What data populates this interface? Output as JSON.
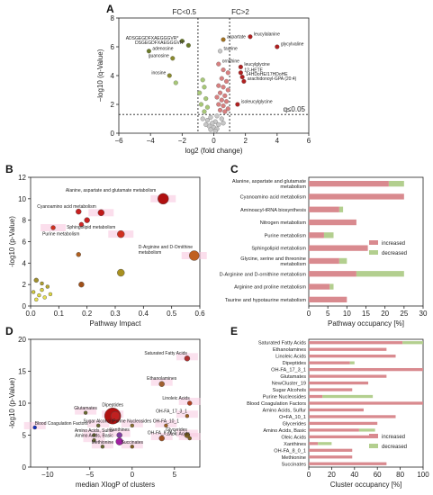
{
  "chart_data": [
    {
      "panel": "A",
      "type": "scatter",
      "xlabel": "log2 (fold change)",
      "ylabel": "−log10 (q-Value)",
      "xlim": [
        -6,
        6
      ],
      "ylim": [
        0,
        8
      ],
      "xticks": [
        "−6",
        "−4",
        "−2",
        "0",
        "2",
        "4",
        "6"
      ],
      "yticks": [
        "0",
        "2",
        "4",
        "6",
        "8"
      ],
      "thresholds": {
        "fc_low": -1,
        "fc_high": 1,
        "q": 1.3
      },
      "threshold_labels": [
        "FC<0.5",
        "FC>2",
        "q≤0.05"
      ],
      "points": [
        {
          "x": 4.0,
          "y": 6.0,
          "label": "glycylvaline",
          "color": "#b02020"
        },
        {
          "x": 2.3,
          "y": 6.7,
          "label": "leucylalanine",
          "color": "#b02020"
        },
        {
          "x": 0.6,
          "y": 6.5,
          "label": "aspartate",
          "color": "#a07020"
        },
        {
          "x": -2.0,
          "y": 6.4,
          "label": "ADSGEGDFXAEGGGVR*",
          "color": "#6a7a2a"
        },
        {
          "x": -1.6,
          "y": 6.1,
          "label": "DSGEGDFXAEGGGVR*",
          "color": "#6a7a2a"
        },
        {
          "x": -4.1,
          "y": 5.7,
          "label": "adenosine",
          "color": "#6a7a2a"
        },
        {
          "x": -2.6,
          "y": 5.2,
          "label": "guanosine",
          "color": "#8a8a30"
        },
        {
          "x": 0.4,
          "y": 5.7,
          "label": "taurine",
          "color": "#c8c8c8"
        },
        {
          "x": 0.3,
          "y": 4.8,
          "label": "ornithine",
          "color": "#d88080"
        },
        {
          "x": 1.7,
          "y": 4.6,
          "label": "leucylglycine",
          "color": "#b02020"
        },
        {
          "x": 1.7,
          "y": 4.2,
          "label": "12-HETE",
          "color": "#b02020"
        },
        {
          "x": 1.8,
          "y": 3.9,
          "label": "14HDoHE/17HDoHE",
          "color": "#b02020"
        },
        {
          "x": 1.9,
          "y": 3.6,
          "label": "arachidonoyl-GPA (20:4)",
          "color": "#b02020"
        },
        {
          "x": -2.8,
          "y": 4.0,
          "label": "inosine",
          "color": "#8a8a30"
        },
        {
          "x": 1.5,
          "y": 2.0,
          "label": "isoleucylglycine",
          "color": "#b02020"
        },
        {
          "x": 0.6,
          "y": 4.4,
          "label": "",
          "color": "#d88080"
        },
        {
          "x": 0.9,
          "y": 4.2,
          "label": "",
          "color": "#d88080"
        },
        {
          "x": 0.5,
          "y": 3.8,
          "label": "",
          "color": "#d88080"
        },
        {
          "x": 0.8,
          "y": 3.6,
          "label": "",
          "color": "#d88080"
        },
        {
          "x": 0.3,
          "y": 3.3,
          "label": "",
          "color": "#d88080"
        },
        {
          "x": 0.6,
          "y": 3.2,
          "label": "",
          "color": "#d88080"
        },
        {
          "x": 0.9,
          "y": 3.0,
          "label": "",
          "color": "#d88080"
        },
        {
          "x": 0.4,
          "y": 2.8,
          "label": "",
          "color": "#d88080"
        },
        {
          "x": 0.7,
          "y": 2.6,
          "label": "",
          "color": "#d88080"
        },
        {
          "x": 0.2,
          "y": 2.5,
          "label": "",
          "color": "#d88080"
        },
        {
          "x": 0.5,
          "y": 2.3,
          "label": "",
          "color": "#d88080"
        },
        {
          "x": 0.8,
          "y": 2.2,
          "label": "",
          "color": "#d88080"
        },
        {
          "x": 0.3,
          "y": 2.0,
          "label": "",
          "color": "#d88080"
        },
        {
          "x": 0.6,
          "y": 1.9,
          "label": "",
          "color": "#d88080"
        },
        {
          "x": 0.9,
          "y": 1.7,
          "label": "",
          "color": "#d88080"
        },
        {
          "x": 0.4,
          "y": 1.6,
          "label": "",
          "color": "#d88080"
        },
        {
          "x": 0.7,
          "y": 1.5,
          "label": "",
          "color": "#d88080"
        },
        {
          "x": -0.7,
          "y": 3.7,
          "label": "",
          "color": "#a8c878"
        },
        {
          "x": -0.6,
          "y": 3.2,
          "label": "",
          "color": "#a8c878"
        },
        {
          "x": -0.9,
          "y": 2.8,
          "label": "",
          "color": "#a8c878"
        },
        {
          "x": -0.5,
          "y": 2.4,
          "label": "",
          "color": "#a8c878"
        },
        {
          "x": -0.8,
          "y": 2.0,
          "label": "",
          "color": "#a8c878"
        },
        {
          "x": -0.4,
          "y": 1.8,
          "label": "",
          "color": "#a8c878"
        },
        {
          "x": -0.6,
          "y": 1.5,
          "label": "",
          "color": "#a8c878"
        },
        {
          "x": -2.4,
          "y": 3.5,
          "label": "",
          "color": "#a8c878"
        },
        {
          "x": 0.2,
          "y": 1.2,
          "label": "",
          "color": "#c8c8c8"
        },
        {
          "x": -0.2,
          "y": 1.1,
          "label": "",
          "color": "#c8c8c8"
        },
        {
          "x": 0.5,
          "y": 1.0,
          "label": "",
          "color": "#c8c8c8"
        },
        {
          "x": -0.4,
          "y": 0.9,
          "label": "",
          "color": "#c8c8c8"
        },
        {
          "x": 0.1,
          "y": 0.8,
          "label": "",
          "color": "#c8c8c8"
        },
        {
          "x": -0.1,
          "y": 0.7,
          "label": "",
          "color": "#c8c8c8"
        },
        {
          "x": 0.3,
          "y": 0.6,
          "label": "",
          "color": "#c8c8c8"
        },
        {
          "x": -0.3,
          "y": 0.5,
          "label": "",
          "color": "#c8c8c8"
        },
        {
          "x": 0.0,
          "y": 0.4,
          "label": "",
          "color": "#c8c8c8"
        },
        {
          "x": 0.2,
          "y": 0.3,
          "label": "",
          "color": "#c8c8c8"
        },
        {
          "x": -0.2,
          "y": 0.25,
          "label": "",
          "color": "#c8c8c8"
        },
        {
          "x": 0.1,
          "y": 0.15,
          "label": "",
          "color": "#c8c8c8"
        },
        {
          "x": -0.5,
          "y": 0.6,
          "label": "",
          "color": "#c8c8c8"
        },
        {
          "x": 0.6,
          "y": 0.7,
          "label": "",
          "color": "#c8c8c8"
        },
        {
          "x": -0.7,
          "y": 1.0,
          "label": "",
          "color": "#c8c8c8"
        }
      ]
    },
    {
      "panel": "B",
      "type": "scatter",
      "xlabel": "Pathway Impact",
      "ylabel": "-log10 (p-Value)",
      "xlim": [
        0,
        0.6
      ],
      "ylim": [
        0,
        12
      ],
      "xticks": [
        "0.0",
        "0.1",
        "0.2",
        "0.3",
        "0.4",
        "0.5",
        "0.6"
      ],
      "yticks": [
        "0",
        "2",
        "4",
        "6",
        "8",
        "10",
        "12"
      ],
      "points": [
        {
          "x": 0.47,
          "y": 10.0,
          "r": 6,
          "color": "#b01010",
          "label": "Alanine, aspartate and glutamate metabolism"
        },
        {
          "x": 0.25,
          "y": 8.7,
          "r": 3.5,
          "color": "#c01818",
          "label": "Cyanoamino acid metabolism"
        },
        {
          "x": 0.17,
          "y": 8.8,
          "r": 3,
          "color": "#c82020",
          "label": ""
        },
        {
          "x": 0.2,
          "y": 8.0,
          "r": 3,
          "color": "#c82020",
          "label": ""
        },
        {
          "x": 0.18,
          "y": 7.6,
          "r": 2.5,
          "color": "#d02828",
          "label": ""
        },
        {
          "x": 0.32,
          "y": 6.7,
          "r": 4,
          "color": "#d03020",
          "label": "Sphingolipid metabolism"
        },
        {
          "x": 0.08,
          "y": 7.3,
          "r": 2.5,
          "color": "#d03020",
          "label": "Purine metabolism"
        },
        {
          "x": 0.58,
          "y": 4.7,
          "r": 5.5,
          "color": "#c06020",
          "label": "D-Arginine and D-Ornithine metabolism"
        },
        {
          "x": 0.32,
          "y": 3.1,
          "r": 4,
          "color": "#a89020",
          "label": ""
        },
        {
          "x": 0.18,
          "y": 2.0,
          "r": 3,
          "color": "#a05018",
          "label": ""
        },
        {
          "x": 0.02,
          "y": 2.4,
          "r": 2.5,
          "color": "#a09030",
          "label": ""
        },
        {
          "x": 0.04,
          "y": 2.1,
          "r": 2,
          "color": "#b0a030",
          "label": ""
        },
        {
          "x": 0.06,
          "y": 1.8,
          "r": 2,
          "color": "#b8a830",
          "label": ""
        },
        {
          "x": 0.01,
          "y": 1.3,
          "r": 2,
          "color": "#d0c840",
          "label": ""
        },
        {
          "x": 0.03,
          "y": 1.0,
          "r": 2,
          "color": "#e0d840",
          "label": ""
        },
        {
          "x": 0.05,
          "y": 0.8,
          "r": 2,
          "color": "#e8e050",
          "label": ""
        },
        {
          "x": 0.02,
          "y": 0.6,
          "r": 2,
          "color": "#e8e050",
          "label": ""
        },
        {
          "x": 0.07,
          "y": 1.1,
          "r": 2,
          "color": "#e0d840",
          "label": ""
        },
        {
          "x": 0.04,
          "y": 1.5,
          "r": 2,
          "color": "#d8d040",
          "label": ""
        },
        {
          "x": 0.17,
          "y": 4.8,
          "r": 2.5,
          "color": "#b06020",
          "label": ""
        }
      ]
    },
    {
      "panel": "C",
      "type": "bar",
      "orientation": "horizontal",
      "xlabel": "Pathway occupancy [%]",
      "xlim": [
        0,
        30
      ],
      "xticks": [
        "0",
        "5",
        "10",
        "15",
        "20",
        "25",
        "30"
      ],
      "categories": [
        "Alanine, aspartate and glutamate metabolism",
        "Cyanoamino acid metabolism",
        "Aminoacyl-tRNA biosynthesis",
        "Nitrogen metabolism",
        "Purine metabolism",
        "Sphingolipid metabolism",
        "Glycine, serine and threonine metabolism",
        "D-Arginine and D-ornithine metabolism",
        "Arginine and proline metabolism",
        "Taurine and hypotaurine metabolism"
      ],
      "series": [
        {
          "name": "increased",
          "values": [
            21,
            25,
            8,
            12.5,
            4,
            15.5,
            8,
            12.5,
            5.5,
            10
          ],
          "color": "#d98a8f"
        },
        {
          "name": "decreased",
          "values": [
            4,
            0,
            1,
            0,
            2.5,
            0,
            2,
            12.5,
            1,
            0
          ],
          "color": "#b3cf8f"
        }
      ],
      "legend": "bottom-right"
    },
    {
      "panel": "D",
      "type": "scatter",
      "xlabel": "median XlogP of clusters",
      "ylabel": "-log10 (p-Value)",
      "xlim": [
        -12,
        8
      ],
      "ylim": [
        0,
        20
      ],
      "xticks": [
        "−10",
        "−5",
        "0",
        "5"
      ],
      "yticks": [
        "0",
        "5",
        "10",
        "15",
        "20"
      ],
      "points": [
        {
          "x": 6.5,
          "y": 17.0,
          "r": 3,
          "color": "#b03030",
          "label": "Saturated Fatty Acids"
        },
        {
          "x": 3.5,
          "y": 13.0,
          "r": 3,
          "color": "#a06030",
          "label": "Ethanolamines"
        },
        {
          "x": 6.8,
          "y": 10.0,
          "r": 2.5,
          "color": "#b04020",
          "label": "Linoleic Acids"
        },
        {
          "x": -2.3,
          "y": 8.0,
          "r": 9,
          "color": "#b01010",
          "label": "Dipeptides"
        },
        {
          "x": -2.0,
          "y": 8.0,
          "r": 5,
          "color": "#c02020",
          "label": ""
        },
        {
          "x": -5.5,
          "y": 8.5,
          "r": 2,
          "color": "#6a6a30",
          "label": "Glutamates"
        },
        {
          "x": 6.5,
          "y": 8.0,
          "r": 2,
          "color": "#a06020",
          "label": "OH-FA_17_3_1"
        },
        {
          "x": -4.0,
          "y": 6.5,
          "r": 2,
          "color": "#6a6a30",
          "label": "Sugar Alcohols"
        },
        {
          "x": 0.0,
          "y": 6.5,
          "r": 2,
          "color": "#8a7030",
          "label": "Purine Nucleosides"
        },
        {
          "x": 4.0,
          "y": 6.5,
          "r": 2,
          "color": "#a06020",
          "label": "OH-FA_10_1"
        },
        {
          "x": 6.5,
          "y": 5.0,
          "r": 3,
          "color": "#806020",
          "label": "Glycerides"
        },
        {
          "x": -11.5,
          "y": 6.2,
          "r": 2,
          "color": "#1030c0",
          "label": "Blood Coagulation Factors"
        },
        {
          "x": -4.5,
          "y": 5.0,
          "r": 2,
          "color": "#6a6a30",
          "label": "Amino Acids, Sulfur"
        },
        {
          "x": -1.5,
          "y": 5.0,
          "r": 3,
          "color": "#8040a0",
          "label": "Xanthines"
        },
        {
          "x": -4.5,
          "y": 4.2,
          "r": 2,
          "color": "#6a6a30",
          "label": "Amino Acids, Basic"
        },
        {
          "x": -1.5,
          "y": 4.0,
          "r": 4,
          "color": "#a020a0",
          "label": ""
        },
        {
          "x": 3.5,
          "y": 4.5,
          "r": 3,
          "color": "#a05020",
          "label": "OH-FA_8_0_1"
        },
        {
          "x": 6.8,
          "y": 4.5,
          "r": 2,
          "color": "#806020",
          "label": "Oleic Acids"
        },
        {
          "x": -3.5,
          "y": 3.2,
          "r": 2,
          "color": "#6a6a30",
          "label": "Methionine"
        },
        {
          "x": 0.0,
          "y": 3.2,
          "r": 2,
          "color": "#806020",
          "label": "Succinates"
        }
      ]
    },
    {
      "panel": "E",
      "type": "bar",
      "orientation": "horizontal",
      "xlabel": "Cluster occupancy [%]",
      "xlim": [
        0,
        100
      ],
      "xticks": [
        "0",
        "20",
        "40",
        "60",
        "80",
        "100"
      ],
      "categories": [
        "Saturated Fatty Acids",
        "Ethanolamines",
        "Linoleic Acids",
        "Dipeptides",
        "OH-FA_17_3_1",
        "Glutamates",
        "NewCluster_19",
        "Sugar Alcohols",
        "Purine Nucleosides",
        "Blood Coagulation Factors",
        "Amino Acids, Sulfur",
        "O=FA_10_1",
        "Glycerides",
        "Amino Acids, Basic",
        "Oleic Acids",
        "Xanthines",
        "OH-FA_8_0_1",
        "Methionine",
        "Succinates"
      ],
      "series": [
        {
          "name": "increased",
          "values": [
            82,
            68,
            76,
            36,
            104,
            68,
            52,
            38,
            12,
            103,
            48,
            76,
            60,
            44,
            60,
            8,
            38,
            38,
            68
          ],
          "color": "#d98a8f"
        },
        {
          "name": "decreased",
          "values": [
            20,
            0,
            0,
            4,
            0,
            0,
            0,
            0,
            44,
            0,
            0,
            0,
            0,
            14,
            0,
            12,
            0,
            0,
            0
          ],
          "color": "#b3cf8f"
        }
      ],
      "legend": "bottom-right"
    }
  ],
  "panels": {
    "A": "A",
    "B": "B",
    "C": "C",
    "D": "D",
    "E": "E"
  }
}
